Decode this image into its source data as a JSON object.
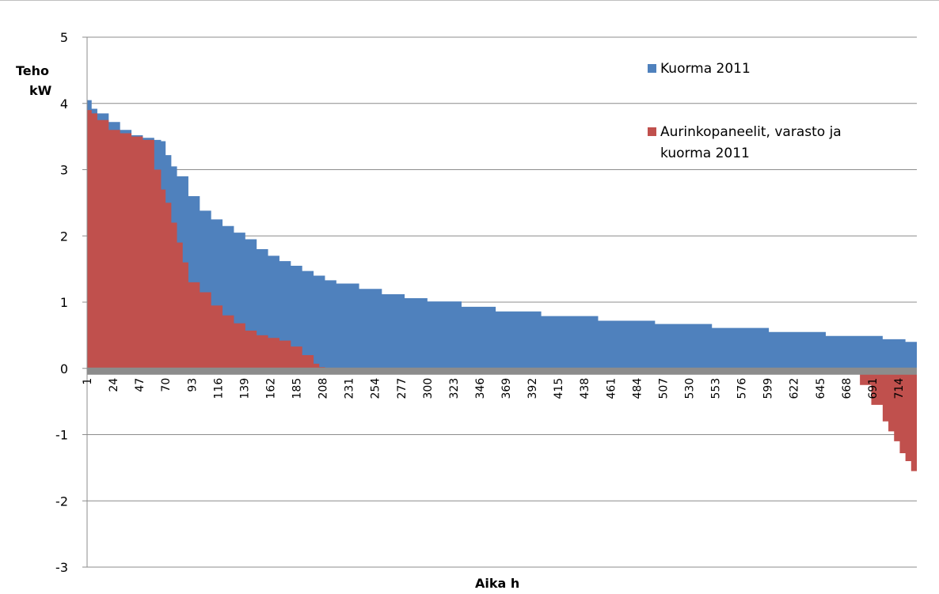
{
  "chart_data": {
    "type": "area",
    "title": "",
    "xlabel": "Aika h",
    "ylabel": [
      "Teho",
      "kW"
    ],
    "ylim": [
      -3,
      5
    ],
    "xlim": [
      1,
      730
    ],
    "yticks": [
      "5",
      "4",
      "3",
      "2",
      "1",
      "0",
      "-1",
      "-2",
      "-3"
    ],
    "xticks": [
      "1",
      "24",
      "47",
      "70",
      "93",
      "116",
      "139",
      "162",
      "185",
      "208",
      "231",
      "254",
      "277",
      "300",
      "323",
      "346",
      "369",
      "392",
      "415",
      "438",
      "461",
      "484",
      "507",
      "530",
      "553",
      "576",
      "599",
      "622",
      "645",
      "668",
      "691",
      "714"
    ],
    "grid": true,
    "legend_position": "top-right",
    "colors": {
      "kuorma": "#4f81bd",
      "aurinko": "#c0504d",
      "zero_band": "#8c8c8c",
      "grid": "#8c8c8c"
    },
    "series": [
      {
        "name": "Kuorma 2011",
        "x": [
          1,
          5,
          10,
          20,
          30,
          40,
          50,
          60,
          66,
          70,
          75,
          80,
          90,
          100,
          110,
          120,
          130,
          140,
          150,
          160,
          170,
          180,
          190,
          200,
          210,
          220,
          240,
          260,
          280,
          300,
          330,
          360,
          400,
          450,
          500,
          550,
          600,
          650,
          700,
          720,
          730
        ],
        "values": [
          4.05,
          3.92,
          3.85,
          3.72,
          3.6,
          3.52,
          3.48,
          3.45,
          3.43,
          3.22,
          3.05,
          2.9,
          2.6,
          2.38,
          2.25,
          2.15,
          2.05,
          1.95,
          1.8,
          1.7,
          1.62,
          1.55,
          1.47,
          1.4,
          1.33,
          1.28,
          1.2,
          1.12,
          1.06,
          1.01,
          0.93,
          0.86,
          0.79,
          0.72,
          0.67,
          0.61,
          0.55,
          0.49,
          0.44,
          0.4,
          0.3
        ]
      },
      {
        "name": "Aurinkopaneelit, varasto ja kuorma 2011",
        "x": [
          1,
          5,
          10,
          20,
          30,
          40,
          50,
          60,
          66,
          70,
          75,
          80,
          85,
          90,
          100,
          110,
          120,
          130,
          140,
          150,
          160,
          170,
          180,
          190,
          200,
          205,
          210,
          250,
          300,
          400,
          500,
          600,
          670,
          680,
          690,
          700,
          705,
          710,
          715,
          720,
          725,
          730
        ],
        "values": [
          3.9,
          3.85,
          3.75,
          3.6,
          3.55,
          3.5,
          3.45,
          3.0,
          2.7,
          2.5,
          2.2,
          1.9,
          1.6,
          1.3,
          1.15,
          0.95,
          0.8,
          0.68,
          0.57,
          0.5,
          0.46,
          0.42,
          0.33,
          0.2,
          0.07,
          0.02,
          0.0,
          0.0,
          0.0,
          0.0,
          0.0,
          0.0,
          0.0,
          -0.25,
          -0.55,
          -0.8,
          -0.95,
          -1.1,
          -1.28,
          -1.4,
          -1.55,
          -1.8
        ]
      }
    ]
  }
}
